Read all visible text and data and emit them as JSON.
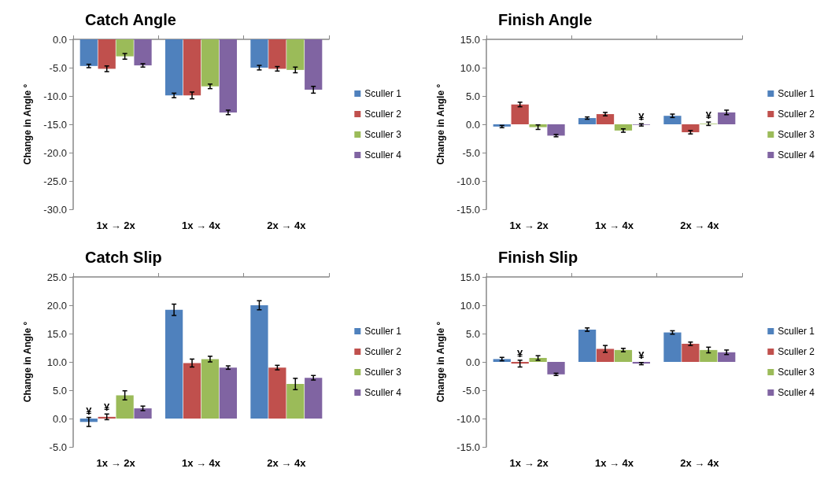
{
  "chart_data": [
    {
      "type": "bar",
      "title": "Catch Angle",
      "ylabel": "Change in Angle °",
      "categories": [
        "1x → 2x",
        "1x → 4x",
        "2x → 4x"
      ],
      "series": [
        {
          "name": "Sculler 1",
          "color": "#4f81bd",
          "values": [
            -4.7,
            -9.9,
            -5.0
          ],
          "errors": [
            0.3,
            0.4,
            0.4
          ]
        },
        {
          "name": "Sculler 2",
          "color": "#c0504d",
          "values": [
            -5.2,
            -9.9,
            -5.2
          ],
          "errors": [
            0.5,
            0.6,
            0.4
          ]
        },
        {
          "name": "Sculler 3",
          "color": "#9bbb59",
          "values": [
            -3.0,
            -8.3,
            -5.4
          ],
          "errors": [
            0.5,
            0.4,
            0.5
          ]
        },
        {
          "name": "Sculler 4",
          "color": "#8064a2",
          "values": [
            -4.6,
            -12.9,
            -8.9
          ],
          "errors": [
            0.3,
            0.4,
            0.6
          ]
        }
      ],
      "ylim": [
        -30,
        0
      ],
      "yticks": [
        {
          "value": -30,
          "label": "-30.0"
        },
        {
          "value": -25,
          "label": "-25.0"
        },
        {
          "value": -20,
          "label": "-20.0"
        },
        {
          "value": -15,
          "label": "-15.0"
        },
        {
          "value": -10,
          "label": "-10.0"
        },
        {
          "value": -5,
          "label": "-5.0"
        },
        {
          "value": 0,
          "label": "0.0"
        }
      ],
      "legend": "right",
      "grid": false
    },
    {
      "type": "bar",
      "title": "Finish Angle",
      "ylabel": "Change in Angle °",
      "categories": [
        "1x → 2x",
        "1x → 4x",
        "2x → 4x"
      ],
      "series": [
        {
          "name": "Sculler 1",
          "color": "#4f81bd",
          "values": [
            -0.4,
            1.1,
            1.5
          ],
          "errors": [
            0.2,
            0.2,
            0.3
          ]
        },
        {
          "name": "Sculler 2",
          "color": "#c0504d",
          "values": [
            3.5,
            1.8,
            -1.4
          ],
          "errors": [
            0.4,
            0.3,
            0.3
          ]
        },
        {
          "name": "Sculler 3",
          "color": "#9bbb59",
          "values": [
            -0.5,
            -1.1,
            0.1
          ],
          "errors": [
            0.4,
            0.3,
            0.3
          ],
          "value_labels": [
            null,
            null,
            "¥"
          ]
        },
        {
          "name": "Sculler 4",
          "color": "#8064a2",
          "values": [
            -2.0,
            -0.1,
            2.1
          ],
          "errors": [
            0.2,
            0.2,
            0.4
          ],
          "value_labels": [
            null,
            "¥",
            null
          ]
        }
      ],
      "ylim": [
        -15,
        15
      ],
      "yticks": [
        {
          "value": -15,
          "label": "-15.0"
        },
        {
          "value": -10,
          "label": "-10.0"
        },
        {
          "value": -5,
          "label": "-5.0"
        },
        {
          "value": 0,
          "label": "0.0"
        },
        {
          "value": 5,
          "label": "5.0"
        },
        {
          "value": 10,
          "label": "10.0"
        },
        {
          "value": 15,
          "label": "15.0"
        }
      ],
      "legend": "right",
      "grid": false
    },
    {
      "type": "bar",
      "title": "Catch Slip",
      "ylabel": "Change in Angle °",
      "categories": [
        "1x → 2x",
        "1x → 4x",
        "2x → 4x"
      ],
      "series": [
        {
          "name": "Sculler 1",
          "color": "#4f81bd",
          "values": [
            -0.6,
            19.2,
            20.0
          ],
          "errors": [
            0.8,
            1.0,
            0.8
          ],
          "value_labels": [
            "¥",
            null,
            null
          ]
        },
        {
          "name": "Sculler 2",
          "color": "#c0504d",
          "values": [
            0.3,
            9.8,
            9.0
          ],
          "errors": [
            0.5,
            0.7,
            0.4
          ],
          "value_labels": [
            "¥",
            null,
            null
          ]
        },
        {
          "name": "Sculler 3",
          "color": "#9bbb59",
          "values": [
            4.1,
            10.5,
            6.1
          ],
          "errors": [
            0.8,
            0.5,
            1.0
          ]
        },
        {
          "name": "Sculler 4",
          "color": "#8064a2",
          "values": [
            1.8,
            9.0,
            7.2
          ],
          "errors": [
            0.4,
            0.3,
            0.4
          ]
        }
      ],
      "ylim": [
        -5,
        25
      ],
      "yticks": [
        {
          "value": -5,
          "label": "-5.0"
        },
        {
          "value": 0,
          "label": "0.0"
        },
        {
          "value": 5,
          "label": "5.0"
        },
        {
          "value": 10,
          "label": "10.0"
        },
        {
          "value": 15,
          "label": "15.0"
        },
        {
          "value": 20,
          "label": "20.0"
        },
        {
          "value": 25,
          "label": "25.0"
        }
      ],
      "legend": "right",
      "grid": false
    },
    {
      "type": "bar",
      "title": "Finish Slip",
      "ylabel": "Change in Angle °",
      "categories": [
        "1x → 2x",
        "1x → 4x",
        "2x → 4x"
      ],
      "series": [
        {
          "name": "Sculler 1",
          "color": "#4f81bd",
          "values": [
            0.5,
            5.7,
            5.2
          ],
          "errors": [
            0.3,
            0.3,
            0.3
          ]
        },
        {
          "name": "Sculler 2",
          "color": "#c0504d",
          "values": [
            -0.3,
            2.3,
            3.2
          ],
          "errors": [
            0.6,
            0.6,
            0.3
          ],
          "value_labels": [
            "¥",
            null,
            null
          ]
        },
        {
          "name": "Sculler 3",
          "color": "#9bbb59",
          "values": [
            0.7,
            2.1,
            2.1
          ],
          "errors": [
            0.4,
            0.3,
            0.5
          ]
        },
        {
          "name": "Sculler 4",
          "color": "#8064a2",
          "values": [
            -2.2,
            -0.3,
            1.7
          ],
          "errors": [
            0.2,
            0.2,
            0.4
          ],
          "value_labels": [
            null,
            "¥",
            null
          ]
        }
      ],
      "ylim": [
        -15,
        15
      ],
      "yticks": [
        {
          "value": -15,
          "label": "-15.0"
        },
        {
          "value": -10,
          "label": "-10.0"
        },
        {
          "value": -5,
          "label": "-5.0"
        },
        {
          "value": 0,
          "label": "0.0"
        },
        {
          "value": 5,
          "label": "5.0"
        },
        {
          "value": 10,
          "label": "10.0"
        },
        {
          "value": 15,
          "label": "15.0"
        }
      ],
      "legend": "right",
      "grid": false
    }
  ]
}
